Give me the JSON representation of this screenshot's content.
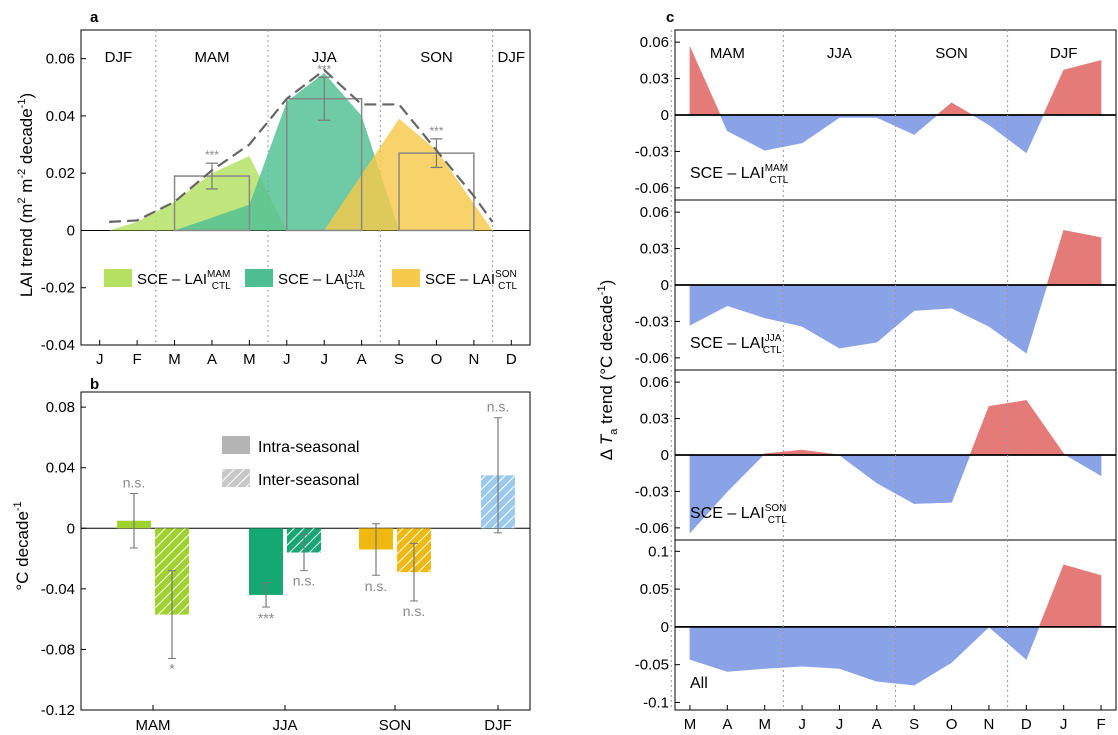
{
  "panels": {
    "a": {
      "label": "a",
      "ylabel_main": "LAI trend (m",
      "ylabel_sup1": "2",
      "ylabel_mid": " m",
      "ylabel_sup2": "-2",
      "ylabel_mid2": " decade",
      "ylabel_sup3": "-1",
      "ylabel_end": ")",
      "season_labels": [
        "DJF",
        "MAM",
        "JJA",
        "SON",
        "DJF"
      ],
      "legend": [
        {
          "base": "SCE – LAI",
          "sup": "MAM",
          "sub": "CTL",
          "color": "#b5e061"
        },
        {
          "base": "SCE – LAI",
          "sup": "JJA",
          "sub": "CTL",
          "color": "#4fbf93"
        },
        {
          "base": "SCE – LAI",
          "sup": "SON",
          "sub": "CTL",
          "color": "#f6c94a"
        }
      ]
    },
    "b": {
      "label": "b",
      "ylabel_main": "°C decade",
      "ylabel_sup": "-1",
      "legend": [
        {
          "label": "Intra-seasonal",
          "style": "solid"
        },
        {
          "label": "Inter-seasonal",
          "style": "hatched"
        }
      ]
    },
    "c": {
      "label": "c",
      "ylabel_pre": "Δ ",
      "ylabel_T": "T",
      "ylabel_sub": "a",
      "ylabel_main": " trend (°C decade",
      "ylabel_sup": "-1",
      "ylabel_end": ")",
      "season_labels": [
        "MAM",
        "JJA",
        "SON",
        "DJF"
      ],
      "subpanel_labels": [
        {
          "base": "SCE – LAI",
          "sup": "MAM",
          "sub": "CTL"
        },
        {
          "base": "SCE – LAI",
          "sup": "JJA",
          "sub": "CTL"
        },
        {
          "base": "SCE – LAI",
          "sup": "SON",
          "sub": "CTL"
        },
        {
          "base": "All",
          "sup": "",
          "sub": ""
        }
      ]
    }
  },
  "chart_data": [
    {
      "type": "area",
      "panel": "a",
      "categories": [
        "J",
        "F",
        "M",
        "A",
        "M",
        "J",
        "J",
        "A",
        "S",
        "O",
        "N",
        "D"
      ],
      "ylim": [
        -0.04,
        0.07
      ],
      "yticks": [
        -0.04,
        -0.02,
        0,
        0.02,
        0.04,
        0.06
      ],
      "ytick_labels": [
        "-0.04",
        "-0.02",
        "0",
        "0.02",
        "0.04",
        "0.06"
      ],
      "series": [
        {
          "name": "SCE – LAI MAM CTL",
          "color": "#b5e061",
          "x": [
            1.25,
            2,
            3,
            4,
            5,
            6
          ],
          "values": [
            0,
            0.003,
            0.01,
            0.02,
            0.026,
            0
          ]
        },
        {
          "name": "SCE – LAI JJA CTL",
          "color": "#4fbf93",
          "x": [
            3,
            5,
            6,
            7,
            8,
            9
          ],
          "values": [
            0,
            0.009,
            0.045,
            0.055,
            0.04,
            0
          ]
        },
        {
          "name": "SCE – LAI SON CTL",
          "color": "#f6c94a",
          "x": [
            7,
            9,
            10,
            11.5
          ],
          "values": [
            0,
            0.039,
            0.028,
            0
          ]
        }
      ],
      "total_line": {
        "x": [
          1.25,
          2,
          3,
          4,
          5,
          6,
          7,
          8,
          9,
          10,
          11,
          11.5
        ],
        "values": [
          0.003,
          0.0035,
          0.01,
          0.021,
          0.03,
          0.046,
          0.056,
          0.044,
          0.044,
          0.028,
          0.012,
          0.003
        ]
      },
      "season_bars": [
        {
          "season": "MAM",
          "x_range": [
            3,
            5
          ],
          "value": 0.019,
          "err_center_x": 4,
          "err_center": 0.019,
          "err": 0.0045,
          "sig": "***"
        },
        {
          "season": "JJA",
          "x_range": [
            6,
            8
          ],
          "value": 0.046,
          "err_center_x": 7,
          "err_center": 0.046,
          "err": 0.0075,
          "sig": "***"
        },
        {
          "season": "SON",
          "x_range": [
            9,
            11
          ],
          "value": 0.027,
          "err_center_x": 10,
          "err_center": 0.027,
          "err": 0.005,
          "sig": "***"
        }
      ],
      "season_dividers": [
        2.5,
        5.5,
        8.5,
        11.5
      ]
    },
    {
      "type": "bar",
      "panel": "b",
      "categories": [
        "MAM",
        "JJA",
        "SON",
        "DJF"
      ],
      "ylim": [
        -0.12,
        0.09
      ],
      "yticks": [
        -0.12,
        -0.08,
        -0.04,
        0,
        0.04,
        0.08
      ],
      "ytick_labels": [
        "-0.12",
        "-0.08",
        "-0.04",
        "0",
        "0.04",
        "0.08"
      ],
      "series": [
        {
          "name": "Intra-seasonal",
          "style": "solid",
          "values": [
            0.005,
            -0.044,
            -0.014,
            0.035
          ],
          "errors": [
            0.018,
            0.008,
            0.017,
            0.038
          ],
          "sig": [
            "n.s.",
            "***",
            "n.s.",
            "n.s."
          ],
          "colors": [
            "#9fd22f",
            "#15a872",
            "#efb911",
            "#9cc9ee"
          ]
        },
        {
          "name": "Inter-seasonal",
          "style": "hatched",
          "values": [
            -0.057,
            -0.016,
            -0.029,
            null
          ],
          "errors": [
            0.029,
            0.012,
            0.019,
            null
          ],
          "sig": [
            "*",
            "n.s.",
            "n.s.",
            ""
          ],
          "colors": [
            "#9fd22f",
            "#15a872",
            "#efb911",
            ""
          ]
        }
      ]
    },
    {
      "type": "area",
      "panel": "c",
      "categories": [
        "M",
        "A",
        "M",
        "J",
        "J",
        "A",
        "S",
        "O",
        "N",
        "D",
        "J",
        "F"
      ],
      "positive_color": "#e57b78",
      "negative_color": "#8aa3e6",
      "season_dividers": [
        0.5,
        3.5,
        6.5,
        9.5
      ],
      "subplots": [
        {
          "name": "SCE – LAI MAM CTL",
          "ylim": [
            -0.07,
            0.07
          ],
          "yticks": [
            -0.06,
            -0.03,
            0,
            0.03,
            0.06
          ],
          "ytick_labels": [
            "-0.06",
            "-0.03",
            "0",
            "0.03",
            "0.06"
          ],
          "values": [
            0.056,
            -0.013,
            -0.029,
            -0.023,
            -0.002,
            -0.002,
            -0.016,
            0.01,
            -0.008,
            -0.031,
            0.037,
            0.045
          ]
        },
        {
          "name": "SCE – LAI JJA CTL",
          "ylim": [
            -0.07,
            0.07
          ],
          "yticks": [
            -0.06,
            -0.03,
            0,
            0.03,
            0.06
          ],
          "ytick_labels": [
            "-0.06",
            "-0.03",
            "0",
            "0.03",
            "0.06"
          ],
          "values": [
            -0.033,
            -0.017,
            -0.027,
            -0.034,
            -0.052,
            -0.047,
            -0.021,
            -0.019,
            -0.034,
            -0.056,
            0.045,
            0.039
          ]
        },
        {
          "name": "SCE – LAI SON CTL",
          "ylim": [
            -0.07,
            0.07
          ],
          "yticks": [
            -0.06,
            -0.03,
            0,
            0.03,
            0.06
          ],
          "ytick_labels": [
            "-0.06",
            "-0.03",
            "0",
            "0.03",
            "0.06"
          ],
          "values": [
            -0.064,
            -0.03,
            0.001,
            0.004,
            0.0,
            -0.023,
            -0.04,
            -0.039,
            0.04,
            0.045,
            0.001,
            -0.017
          ]
        },
        {
          "name": "All",
          "ylim": [
            -0.11,
            0.115
          ],
          "yticks": [
            -0.1,
            -0.05,
            0,
            0.05,
            0.1
          ],
          "ytick_labels": [
            "-0.1",
            "-0.05",
            "0",
            "0.05",
            "0.1"
          ],
          "values": [
            -0.043,
            -0.059,
            -0.055,
            -0.052,
            -0.055,
            -0.072,
            -0.077,
            -0.047,
            0.0,
            -0.043,
            0.082,
            0.068
          ]
        }
      ]
    }
  ]
}
